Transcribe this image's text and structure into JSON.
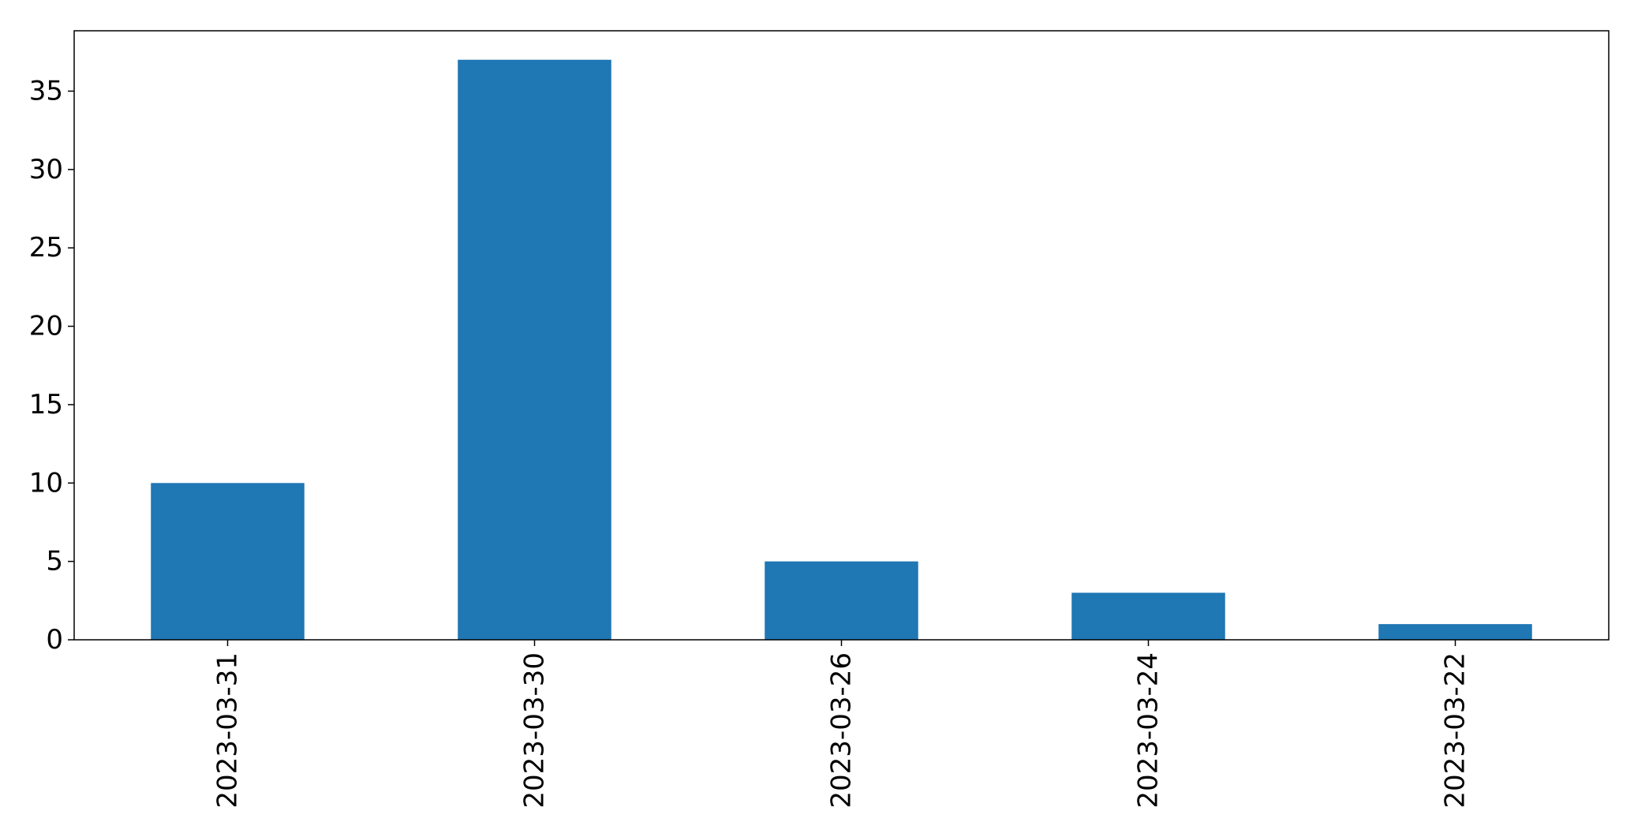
{
  "chart_data": {
    "type": "bar",
    "categories": [
      "2023-03-31",
      "2023-03-30",
      "2023-03-26",
      "2023-03-24",
      "2023-03-22"
    ],
    "values": [
      10,
      37,
      5,
      3,
      1
    ],
    "title": "",
    "xlabel": "",
    "ylabel": "",
    "ylim": [
      0,
      38.85
    ],
    "yticks": [
      0,
      5,
      10,
      15,
      20,
      25,
      30,
      35
    ],
    "grid": false,
    "legend": "none",
    "bar_color": "#1f77b4",
    "axis_color": "#000000"
  }
}
